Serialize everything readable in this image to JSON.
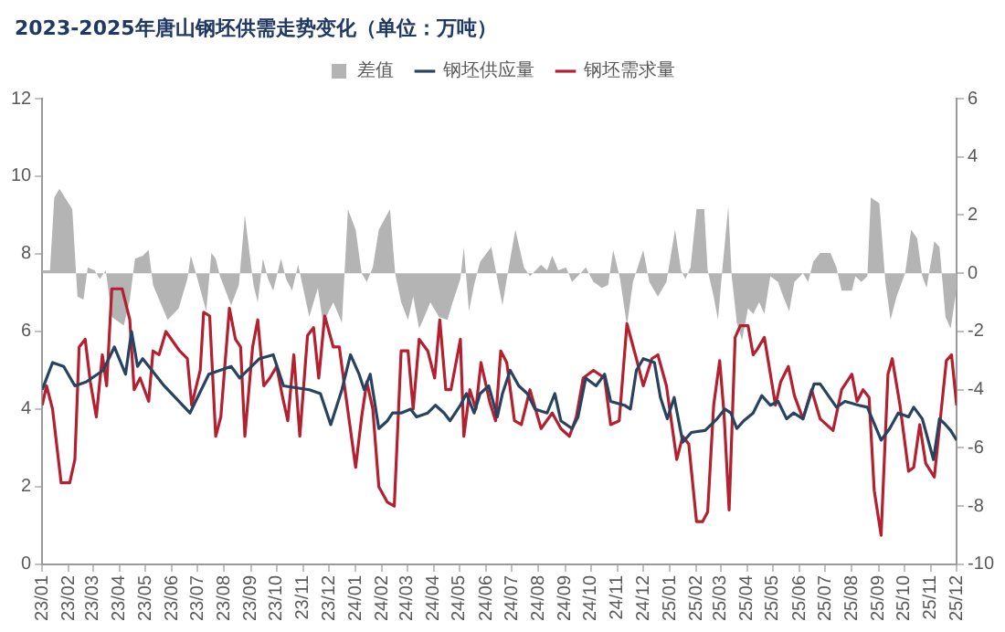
{
  "chart_data": {
    "type": "line",
    "title": "2023-2025年唐山钢坯供需走势变化（单位：万吨）",
    "legend": "top",
    "marker": "none",
    "grid": false,
    "xlim": [
      "2023-01-01",
      "2025-12-01"
    ],
    "xticks": [
      {
        "value": "2023-01",
        "label": "23/01"
      },
      {
        "value": "2023-02",
        "label": "23/02"
      },
      {
        "value": "2023-03",
        "label": "23/03"
      },
      {
        "value": "2023-04",
        "label": "23/04"
      },
      {
        "value": "2023-05",
        "label": "23/05"
      },
      {
        "value": "2023-06",
        "label": "23/06"
      },
      {
        "value": "2023-07",
        "label": "23/07"
      },
      {
        "value": "2023-08",
        "label": "23/08"
      },
      {
        "value": "2023-09",
        "label": "23/09"
      },
      {
        "value": "2023-10",
        "label": "23/10"
      },
      {
        "value": "2023-11",
        "label": "23/11"
      },
      {
        "value": "2023-12",
        "label": "23/12"
      },
      {
        "value": "2024-01",
        "label": "24/01"
      },
      {
        "value": "2024-02",
        "label": "24/02"
      },
      {
        "value": "2024-03",
        "label": "24/03"
      },
      {
        "value": "2024-04",
        "label": "24/04"
      },
      {
        "value": "2024-05",
        "label": "24/05"
      },
      {
        "value": "2024-06",
        "label": "24/06"
      },
      {
        "value": "2024-07",
        "label": "24/07"
      },
      {
        "value": "2024-08",
        "label": "24/08"
      },
      {
        "value": "2024-09",
        "label": "24/09"
      },
      {
        "value": "2024-10",
        "label": "24/10"
      },
      {
        "value": "2024-11",
        "label": "24/11"
      },
      {
        "value": "2024-12",
        "label": "24/12"
      },
      {
        "value": "2025-01",
        "label": "25/01"
      },
      {
        "value": "2025-02",
        "label": "25/02"
      },
      {
        "value": "2025-03",
        "label": "25/03"
      },
      {
        "value": "2025-04",
        "label": "25/04"
      },
      {
        "value": "2025-05",
        "label": "25/05"
      },
      {
        "value": "2025-06",
        "label": "25/06"
      },
      {
        "value": "2025-07",
        "label": "25/07"
      },
      {
        "value": "2025-08",
        "label": "25/08"
      },
      {
        "value": "2025-09",
        "label": "25/09"
      },
      {
        "value": "2025-10",
        "label": "25/10"
      },
      {
        "value": "2025-11",
        "label": "25/11"
      },
      {
        "value": "2025-12",
        "label": "25/12"
      }
    ],
    "ylim": [
      0,
      12
    ],
    "yticks": [
      0,
      2,
      4,
      6,
      8,
      10,
      12
    ],
    "y2lim": [
      -10,
      6
    ],
    "y2ticks": [
      -10,
      -8,
      -6,
      -4,
      -2,
      0,
      2,
      4,
      6
    ],
    "series": [
      {
        "name": "差值",
        "type": "area",
        "axis": "y2",
        "color": "#b4b4b4",
        "x": [
          "2023-01-01",
          "2023-01-10",
          "2023-01-15",
          "2023-01-21",
          "2023-02-05",
          "2023-02-11",
          "2023-02-18",
          "2023-02-23",
          "2023-03-03",
          "2023-03-09",
          "2023-03-16",
          "2023-03-23",
          "2023-04-06",
          "2023-04-13",
          "2023-04-19",
          "2023-04-28",
          "2023-05-05",
          "2023-05-10",
          "2023-05-27",
          "2023-06-09",
          "2023-06-19",
          "2023-06-23",
          "2023-06-28",
          "2023-07-11",
          "2023-07-17",
          "2023-07-22",
          "2023-07-27",
          "2023-08-09",
          "2023-08-18",
          "2023-08-25",
          "2023-09-04",
          "2023-09-09",
          "2023-09-15",
          "2023-09-21",
          "2023-09-27",
          "2023-10-06",
          "2023-10-12",
          "2023-10-19",
          "2023-10-26",
          "2023-11-08",
          "2023-11-18",
          "2023-11-24",
          "2023-12-06",
          "2023-12-16",
          "2023-12-23",
          "2024-01-01",
          "2024-01-08",
          "2024-01-14",
          "2024-01-21",
          "2024-01-28",
          "2024-02-10",
          "2024-02-16",
          "2024-02-23",
          "2024-03-02",
          "2024-03-08",
          "2024-03-15",
          "2024-03-21",
          "2024-03-28",
          "2024-04-07",
          "2024-04-17",
          "2024-04-23",
          "2024-05-02",
          "2024-05-06",
          "2024-05-12",
          "2024-05-18",
          "2024-05-25",
          "2024-06-07",
          "2024-06-14",
          "2024-06-20",
          "2024-06-25",
          "2024-07-05",
          "2024-07-15",
          "2024-07-22",
          "2024-08-04",
          "2024-08-11",
          "2024-08-17",
          "2024-08-24",
          "2024-09-02",
          "2024-09-09",
          "2024-09-19",
          "2024-09-25",
          "2024-10-04",
          "2024-10-14",
          "2024-10-21",
          "2024-10-27",
          "2024-11-04",
          "2024-11-12",
          "2024-11-19",
          "2024-12-01",
          "2024-12-08",
          "2024-12-18",
          "2024-12-28",
          "2025-01-07",
          "2025-01-14",
          "2025-01-19",
          "2025-01-25",
          "2025-02-01",
          "2025-02-10",
          "2025-02-14",
          "2025-02-21",
          "2025-02-26",
          "2025-03-03",
          "2025-03-10",
          "2025-03-14",
          "2025-03-20",
          "2025-03-26",
          "2025-04-02",
          "2025-04-08",
          "2025-04-15",
          "2025-04-21",
          "2025-04-28",
          "2025-05-07",
          "2025-05-13",
          "2025-05-20",
          "2025-05-26",
          "2025-06-05",
          "2025-06-11",
          "2025-06-17",
          "2025-06-25",
          "2025-07-07",
          "2025-07-14",
          "2025-07-20",
          "2025-08-01",
          "2025-08-05",
          "2025-08-12",
          "2025-08-19",
          "2025-08-23",
          "2025-09-02",
          "2025-09-09",
          "2025-09-15",
          "2025-09-22",
          "2025-10-02",
          "2025-10-09",
          "2025-10-16",
          "2025-10-22",
          "2025-10-27",
          "2025-11-05",
          "2025-11-11",
          "2025-11-18",
          "2025-11-24",
          "2025-12-01"
        ],
        "values": [
          0.1,
          0.1,
          2.6,
          2.9,
          2.2,
          -0.8,
          -0.9,
          0.2,
          0.1,
          -0.2,
          0.1,
          -1.5,
          -1.8,
          -0.9,
          0.5,
          0.6,
          0.8,
          -0.4,
          -1.6,
          -1.2,
          -0.2,
          0.6,
          0.1,
          -1.3,
          0.7,
          0.5,
          -0.1,
          -1.1,
          -0.4,
          2.0,
          -0.4,
          -1.0,
          0.5,
          -0.2,
          -0.6,
          0.5,
          -0.2,
          -0.6,
          0.3,
          -1.5,
          -0.5,
          -1.7,
          -1.0,
          -1.7,
          2.2,
          1.5,
          0,
          -0.3,
          0.2,
          1.5,
          2.2,
          0,
          -1.0,
          -1.6,
          -0.8,
          -1.9,
          -1.5,
          -1.0,
          -1.5,
          -1.6,
          -1.0,
          -0.2,
          0.9,
          -1.3,
          -0.4,
          0.4,
          0.9,
          -0.2,
          -1.1,
          -0.2,
          1.5,
          0.2,
          -0.1,
          0.3,
          0.1,
          0.6,
          0.1,
          0.2,
          -0.3,
          0,
          0.2,
          -0.3,
          -0.5,
          -0.4,
          0.8,
          -0.2,
          -1.8,
          -0.3,
          0.8,
          -0.3,
          -0.8,
          -0.3,
          1.5,
          0.1,
          -0.2,
          0.2,
          2.2,
          2.2,
          0.1,
          -0.8,
          -1.6,
          0.1,
          2.3,
          -0.1,
          -1.7,
          -2.3,
          -1.2,
          -1.4,
          -1.0,
          -1.4,
          -0.1,
          -0.3,
          -0.8,
          -1.3,
          -0.3,
          0,
          -0.3,
          0.4,
          0.7,
          0.7,
          0.2,
          -0.6,
          -0.6,
          -0.1,
          -0.3,
          -0.1,
          2.6,
          2.4,
          -0.3,
          -1.6,
          -0.8,
          0,
          1.5,
          1.2,
          -0.1,
          -0.5,
          1.1,
          0.9,
          -1.5,
          -1.9,
          -0.5
        ]
      },
      {
        "name": "钢坯供应量",
        "color": "#27435f",
        "x": [
          "2023-01-01",
          "2023-01-13",
          "2023-01-26",
          "2023-02-08",
          "2023-02-21",
          "2023-03-13",
          "2023-03-26",
          "2023-04-08",
          "2023-04-15",
          "2023-04-22",
          "2023-04-28",
          "2023-05-23",
          "2023-06-22",
          "2023-07-14",
          "2023-08-09",
          "2023-08-19",
          "2023-09-11",
          "2023-09-27",
          "2023-10-09",
          "2023-11-08",
          "2023-11-21",
          "2023-12-03",
          "2023-12-16",
          "2023-12-26",
          "2024-01-05",
          "2024-01-11",
          "2024-01-18",
          "2024-01-28",
          "2024-02-07",
          "2024-02-13",
          "2024-02-23",
          "2024-03-05",
          "2024-03-12",
          "2024-03-25",
          "2024-04-03",
          "2024-04-13",
          "2024-04-20",
          "2024-05-02",
          "2024-05-09",
          "2024-05-18",
          "2024-05-25",
          "2024-06-04",
          "2024-06-14",
          "2024-06-20",
          "2024-06-29",
          "2024-07-09",
          "2024-07-19",
          "2024-07-28",
          "2024-08-11",
          "2024-08-20",
          "2024-08-27",
          "2024-09-09",
          "2024-09-16",
          "2024-09-25",
          "2024-10-07",
          "2024-10-17",
          "2024-10-24",
          "2024-11-09",
          "2024-11-16",
          "2024-11-23",
          "2024-12-01",
          "2024-12-14",
          "2024-12-21",
          "2024-12-29",
          "2025-01-06",
          "2025-01-16",
          "2025-01-26",
          "2025-02-11",
          "2025-02-25",
          "2025-03-06",
          "2025-03-13",
          "2025-03-20",
          "2025-03-28",
          "2025-04-08",
          "2025-04-18",
          "2025-04-28",
          "2025-05-07",
          "2025-05-17",
          "2025-05-25",
          "2025-06-05",
          "2025-06-18",
          "2025-06-25",
          "2025-07-14",
          "2025-07-24",
          "2025-08-09",
          "2025-08-19",
          "2025-09-04",
          "2025-09-14",
          "2025-09-24",
          "2025-10-06",
          "2025-10-12",
          "2025-10-22",
          "2025-11-04",
          "2025-11-11",
          "2025-11-18",
          "2025-11-24",
          "2025-12-01"
        ],
        "values": [
          4.5,
          5.2,
          5.1,
          4.6,
          4.7,
          5.0,
          5.6,
          4.9,
          6.0,
          5.1,
          5.3,
          4.6,
          3.9,
          4.9,
          5.1,
          4.8,
          5.3,
          5.4,
          4.6,
          4.5,
          4.4,
          3.6,
          4.5,
          5.4,
          4.9,
          4.5,
          4.9,
          3.5,
          3.7,
          3.9,
          3.9,
          4.0,
          3.8,
          3.9,
          4.1,
          3.9,
          3.7,
          4.1,
          4.4,
          3.9,
          4.4,
          4.6,
          3.8,
          4.4,
          5.0,
          4.6,
          4.4,
          4.0,
          3.9,
          4.4,
          3.7,
          3.5,
          3.8,
          4.8,
          4.6,
          4.9,
          4.2,
          4.1,
          4.0,
          5.0,
          5.3,
          5.2,
          4.3,
          3.75,
          4.3,
          3.15,
          3.4,
          3.45,
          3.75,
          4.0,
          3.9,
          3.5,
          3.7,
          3.9,
          4.35,
          4.1,
          4.2,
          3.75,
          3.9,
          3.75,
          4.65,
          4.65,
          4.05,
          4.2,
          4.1,
          4.05,
          3.2,
          3.5,
          3.9,
          3.8,
          4.05,
          3.75,
          2.7,
          3.75,
          3.6,
          3.45,
          3.2
        ]
      },
      {
        "name": "钢坯需求量",
        "color": "#b3202f",
        "x": [
          "2023-01-01",
          "2023-01-06",
          "2023-01-13",
          "2023-01-23",
          "2023-02-02",
          "2023-02-08",
          "2023-02-13",
          "2023-02-20",
          "2023-02-26",
          "2023-03-05",
          "2023-03-12",
          "2023-03-17",
          "2023-03-23",
          "2023-04-04",
          "2023-04-13",
          "2023-04-18",
          "2023-04-25",
          "2023-05-05",
          "2023-05-10",
          "2023-05-17",
          "2023-05-25",
          "2023-06-10",
          "2023-06-19",
          "2023-06-24",
          "2023-07-04",
          "2023-07-08",
          "2023-07-15",
          "2023-07-22",
          "2023-07-28",
          "2023-08-07",
          "2023-08-14",
          "2023-08-20",
          "2023-08-25",
          "2023-09-03",
          "2023-09-09",
          "2023-09-16",
          "2023-09-23",
          "2023-10-01",
          "2023-10-08",
          "2023-10-14",
          "2023-10-21",
          "2023-10-28",
          "2023-11-06",
          "2023-11-13",
          "2023-11-19",
          "2023-11-26",
          "2023-12-06",
          "2023-12-13",
          "2023-12-19",
          "2024-01-01",
          "2024-01-08",
          "2024-01-14",
          "2024-01-21",
          "2024-01-28",
          "2024-02-07",
          "2024-02-15",
          "2024-02-23",
          "2024-03-02",
          "2024-03-08",
          "2024-03-15",
          "2024-03-25",
          "2024-04-02",
          "2024-04-08",
          "2024-04-15",
          "2024-04-21",
          "2024-05-02",
          "2024-05-06",
          "2024-05-13",
          "2024-05-20",
          "2024-05-26",
          "2024-06-05",
          "2024-06-12",
          "2024-06-18",
          "2024-06-25",
          "2024-07-04",
          "2024-07-12",
          "2024-07-22",
          "2024-08-04",
          "2024-08-17",
          "2024-08-27",
          "2024-09-06",
          "2024-09-14",
          "2024-09-22",
          "2024-10-04",
          "2024-10-17",
          "2024-10-24",
          "2024-11-03",
          "2024-11-12",
          "2024-11-23",
          "2024-12-01",
          "2024-12-11",
          "2024-12-18",
          "2024-12-28",
          "2025-01-09",
          "2025-01-16",
          "2025-01-23",
          "2025-02-01",
          "2025-02-08",
          "2025-02-14",
          "2025-02-21",
          "2025-02-28",
          "2025-03-05",
          "2025-03-11",
          "2025-03-18",
          "2025-03-24",
          "2025-04-02",
          "2025-04-08",
          "2025-04-13",
          "2025-04-21",
          "2025-05-04",
          "2025-05-10",
          "2025-05-19",
          "2025-05-26",
          "2025-06-05",
          "2025-06-15",
          "2025-06-25",
          "2025-07-10",
          "2025-07-20",
          "2025-08-01",
          "2025-08-07",
          "2025-08-14",
          "2025-08-21",
          "2025-08-27",
          "2025-09-04",
          "2025-09-12",
          "2025-09-17",
          "2025-09-26",
          "2025-10-06",
          "2025-10-12",
          "2025-10-19",
          "2025-10-26",
          "2025-11-05",
          "2025-11-12",
          "2025-11-19",
          "2025-11-25",
          "2025-12-01"
        ],
        "values": [
          4.1,
          4.6,
          4.0,
          2.1,
          2.1,
          2.7,
          5.6,
          5.8,
          4.7,
          3.8,
          5.4,
          4.6,
          7.1,
          7.1,
          6.3,
          4.5,
          4.8,
          4.2,
          5.5,
          5.4,
          6.0,
          5.5,
          5.3,
          4.1,
          5.0,
          6.5,
          6.4,
          3.3,
          3.8,
          6.6,
          5.8,
          5.6,
          3.3,
          5.6,
          6.3,
          4.6,
          4.8,
          5.1,
          4.3,
          3.7,
          5.4,
          3.3,
          5.9,
          6.1,
          4.8,
          6.4,
          5.6,
          5.6,
          4.6,
          2.5,
          3.8,
          4.7,
          4.0,
          2.0,
          1.6,
          1.5,
          5.5,
          5.5,
          4.0,
          5.8,
          5.5,
          4.8,
          6.3,
          4.5,
          4.5,
          5.8,
          3.3,
          4.5,
          4.0,
          5.2,
          4.2,
          3.7,
          5.5,
          5.2,
          3.7,
          3.6,
          4.5,
          3.5,
          3.9,
          3.5,
          3.3,
          3.8,
          4.8,
          5.0,
          4.8,
          3.6,
          3.7,
          6.2,
          5.3,
          4.6,
          5.3,
          5.4,
          4.6,
          2.7,
          3.3,
          3.1,
          1.1,
          1.1,
          1.35,
          4.1,
          5.25,
          3.9,
          1.4,
          5.85,
          6.15,
          6.15,
          5.4,
          5.55,
          5.85,
          4.1,
          4.7,
          5.1,
          4.35,
          3.75,
          4.5,
          3.75,
          3.45,
          4.5,
          4.9,
          4.2,
          4.5,
          4.3,
          1.9,
          0.75,
          4.9,
          5.3,
          4.1,
          2.4,
          2.5,
          3.6,
          2.6,
          2.25,
          3.75,
          5.25,
          5.4,
          4.1
        ]
      }
    ]
  }
}
